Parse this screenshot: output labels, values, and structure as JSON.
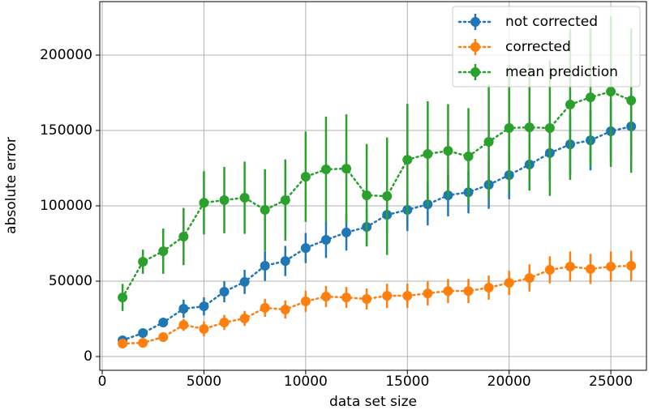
{
  "chart_data": {
    "type": "errorbar-line",
    "xlabel": "data set size",
    "ylabel": "absolute error",
    "x": [
      1000,
      2000,
      3000,
      4000,
      5000,
      6000,
      7000,
      8000,
      9000,
      10000,
      11000,
      12000,
      13000,
      14000,
      15000,
      16000,
      17000,
      18000,
      19000,
      20000,
      21000,
      22000,
      23000,
      24000,
      25000,
      26000
    ],
    "series": [
      {
        "name": "not corrected",
        "color": "#1f77b4",
        "values": [
          10750,
          15600,
          22600,
          31700,
          33300,
          43000,
          49500,
          60200,
          63400,
          72000,
          77400,
          82300,
          86000,
          94000,
          97300,
          101000,
          107000,
          109000,
          114000,
          120400,
          127400,
          135000,
          140800,
          143500,
          149500,
          152700
        ],
        "errors": [
          2000,
          2000,
          3000,
          6000,
          6000,
          7000,
          8000,
          10000,
          10000,
          10000,
          12000,
          12000,
          12000,
          12000,
          14000,
          14000,
          14000,
          14000,
          16000,
          16000,
          16000,
          18000,
          20000,
          20000,
          20000,
          20000
        ]
      },
      {
        "name": "corrected",
        "color": "#ff7f0e",
        "values": [
          8600,
          9100,
          12900,
          21000,
          18300,
          22600,
          25300,
          32300,
          31200,
          36600,
          39800,
          39200,
          38200,
          40300,
          40300,
          41900,
          43500,
          43500,
          45700,
          48900,
          52100,
          57500,
          59700,
          58100,
          59700,
          60200
        ],
        "errors": [
          2000,
          2000,
          3000,
          4000,
          5000,
          5000,
          5000,
          6000,
          6000,
          7000,
          7000,
          7000,
          7000,
          8000,
          8000,
          8000,
          8000,
          8000,
          8000,
          8000,
          9000,
          9000,
          10000,
          10000,
          10000,
          10000
        ]
      },
      {
        "name": "mean prediction",
        "color": "#2ca02c",
        "values": [
          39200,
          62900,
          69900,
          79600,
          102000,
          103800,
          105400,
          97300,
          103800,
          119300,
          124200,
          124700,
          107000,
          106400,
          130600,
          134400,
          136500,
          132800,
          142500,
          151600,
          152100,
          151600,
          167200,
          172000,
          175800,
          169900
        ],
        "errors": [
          9000,
          8000,
          15000,
          19000,
          21000,
          22000,
          24000,
          27000,
          27000,
          30000,
          35000,
          36000,
          34000,
          39000,
          37000,
          35000,
          31000,
          32000,
          38000,
          42000,
          42000,
          45000,
          50000,
          46000,
          50000,
          48000
        ]
      }
    ],
    "xlim": [
      -120,
      26750
    ],
    "ylim": [
      -9140,
      235500
    ],
    "xticks": [
      0,
      5000,
      10000,
      15000,
      20000,
      25000
    ],
    "yticks": [
      0,
      50000,
      100000,
      150000,
      200000
    ],
    "grid": true,
    "legend": "upper right"
  }
}
